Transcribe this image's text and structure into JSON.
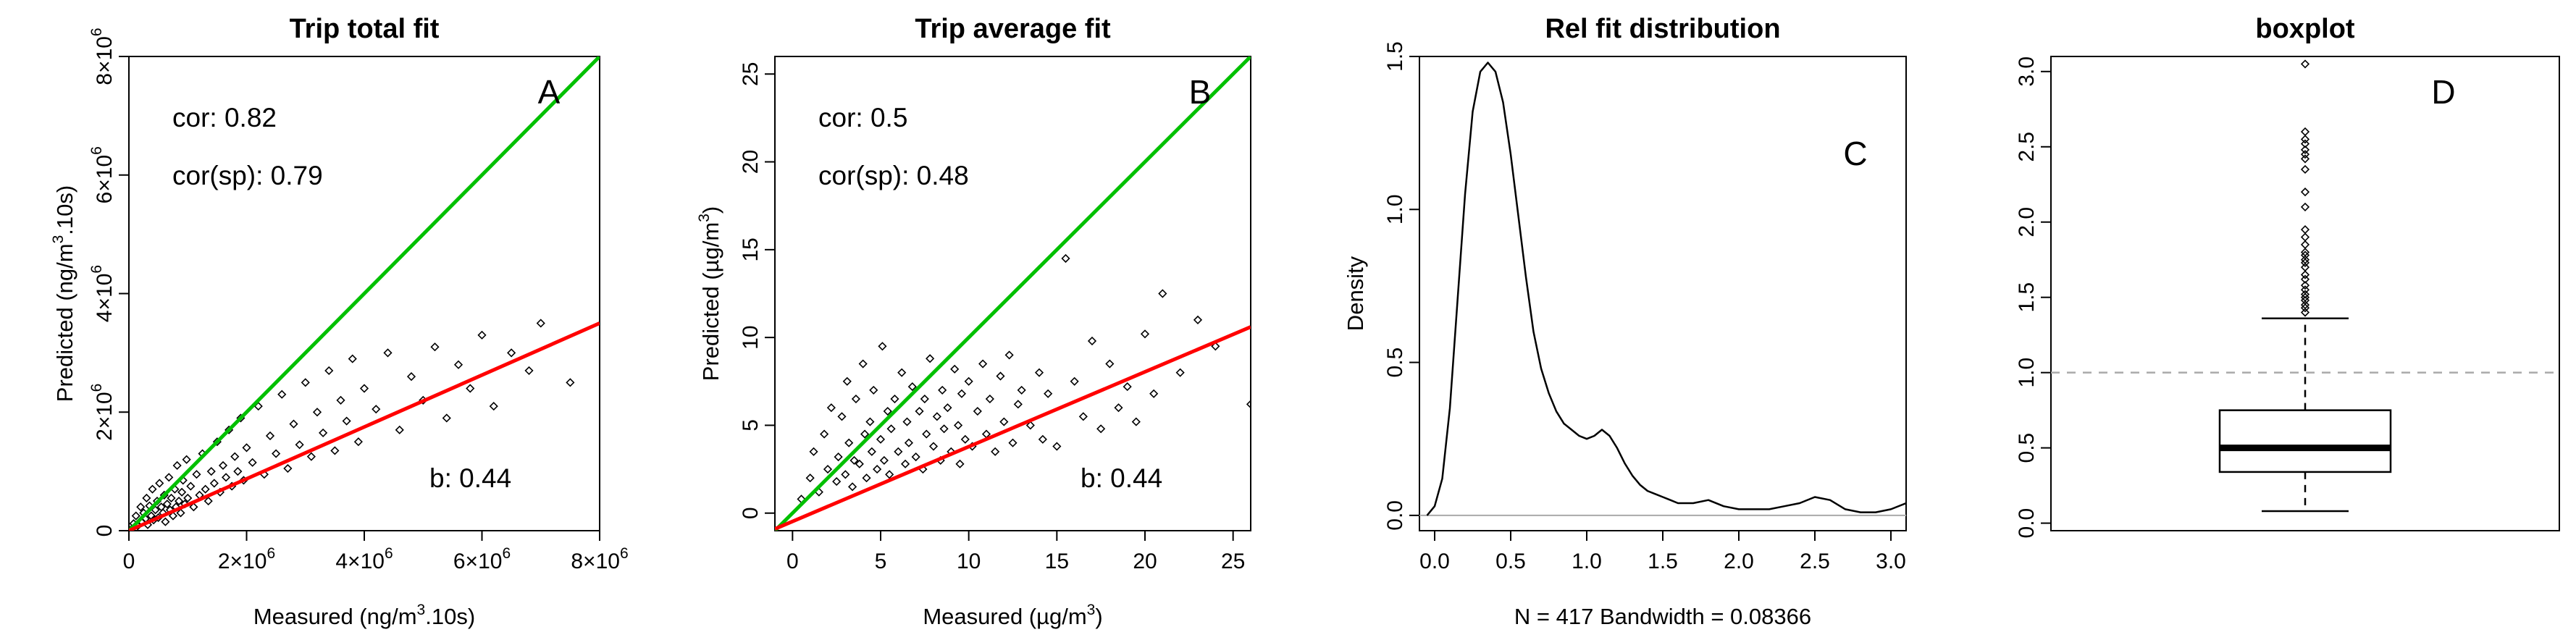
{
  "chart_data": [
    {
      "type": "scatter",
      "title": "Trip total fit",
      "xlabel": "Measured (ng/m^3.10s)",
      "ylabel": "Predicted (ng/m^3.10s)",
      "xlim": [
        0,
        8000000
      ],
      "ylim": [
        0,
        8000000
      ],
      "x_ticks": [
        {
          "v": 0,
          "label": "0"
        },
        {
          "v": 2000000,
          "label": "2×10",
          "exp": "6"
        },
        {
          "v": 4000000,
          "label": "4×10",
          "exp": "6"
        },
        {
          "v": 6000000,
          "label": "6×10",
          "exp": "6"
        },
        {
          "v": 8000000,
          "label": "8×10",
          "exp": "6"
        }
      ],
      "y_ticks": [
        {
          "v": 0,
          "label": "0"
        },
        {
          "v": 2000000,
          "label": "2×10",
          "exp": "6"
        },
        {
          "v": 4000000,
          "label": "4×10",
          "exp": "6"
        },
        {
          "v": 6000000,
          "label": "6×10",
          "exp": "6"
        },
        {
          "v": 8000000,
          "label": "8×10",
          "exp": "6"
        }
      ],
      "annotations": {
        "cor": "cor: 0.82",
        "cor_sp": "cor(sp): 0.79",
        "b": "b: 0.44",
        "letter": "A"
      },
      "lines": [
        {
          "color": "#00c000",
          "x": [
            0,
            8000000
          ],
          "y": [
            0,
            8000000
          ]
        },
        {
          "color": "#ff0000",
          "x": [
            0,
            8000000
          ],
          "y": [
            0,
            3500000
          ]
        }
      ],
      "points": [
        [
          50000,
          30000
        ],
        [
          80000,
          120000
        ],
        [
          120000,
          250000
        ],
        [
          150000,
          80000
        ],
        [
          200000,
          400000
        ],
        [
          220000,
          150000
        ],
        [
          250000,
          300000
        ],
        [
          280000,
          200000
        ],
        [
          300000,
          550000
        ],
        [
          320000,
          100000
        ],
        [
          350000,
          420000
        ],
        [
          380000,
          250000
        ],
        [
          400000,
          700000
        ],
        [
          420000,
          180000
        ],
        [
          450000,
          350000
        ],
        [
          480000,
          500000
        ],
        [
          500000,
          220000
        ],
        [
          520000,
          800000
        ],
        [
          550000,
          400000
        ],
        [
          580000,
          300000
        ],
        [
          600000,
          600000
        ],
        [
          620000,
          150000
        ],
        [
          650000,
          450000
        ],
        [
          680000,
          900000
        ],
        [
          700000,
          350000
        ],
        [
          720000,
          550000
        ],
        [
          750000,
          250000
        ],
        [
          780000,
          700000
        ],
        [
          800000,
          400000
        ],
        [
          820000,
          1100000
        ],
        [
          850000,
          500000
        ],
        [
          880000,
          300000
        ],
        [
          900000,
          650000
        ],
        [
          920000,
          850000
        ],
        [
          950000,
          450000
        ],
        [
          980000,
          1200000
        ],
        [
          1000000,
          550000
        ],
        [
          1050000,
          750000
        ],
        [
          1100000,
          400000
        ],
        [
          1150000,
          950000
        ],
        [
          1200000,
          600000
        ],
        [
          1250000,
          1300000
        ],
        [
          1300000,
          700000
        ],
        [
          1350000,
          500000
        ],
        [
          1400000,
          1000000
        ],
        [
          1450000,
          800000
        ],
        [
          1500000,
          1500000
        ],
        [
          1550000,
          650000
        ],
        [
          1600000,
          1100000
        ],
        [
          1650000,
          900000
        ],
        [
          1700000,
          1700000
        ],
        [
          1750000,
          750000
        ],
        [
          1800000,
          1250000
        ],
        [
          1850000,
          1000000
        ],
        [
          1900000,
          1900000
        ],
        [
          1950000,
          850000
        ],
        [
          2000000,
          1400000
        ],
        [
          2100000,
          1150000
        ],
        [
          2200000,
          2100000
        ],
        [
          2300000,
          950000
        ],
        [
          2400000,
          1600000
        ],
        [
          2500000,
          1300000
        ],
        [
          2600000,
          2300000
        ],
        [
          2700000,
          1050000
        ],
        [
          2800000,
          1800000
        ],
        [
          2900000,
          1450000
        ],
        [
          3000000,
          2500000
        ],
        [
          3100000,
          1250000
        ],
        [
          3200000,
          2000000
        ],
        [
          3300000,
          1650000
        ],
        [
          3400000,
          2700000
        ],
        [
          3500000,
          1350000
        ],
        [
          3600000,
          2200000
        ],
        [
          3700000,
          1850000
        ],
        [
          3800000,
          2900000
        ],
        [
          3900000,
          1500000
        ],
        [
          4000000,
          2400000
        ],
        [
          4200000,
          2050000
        ],
        [
          4400000,
          3000000
        ],
        [
          4600000,
          1700000
        ],
        [
          4800000,
          2600000
        ],
        [
          5000000,
          2200000
        ],
        [
          5200000,
          3100000
        ],
        [
          5400000,
          1900000
        ],
        [
          5600000,
          2800000
        ],
        [
          5800000,
          2400000
        ],
        [
          6000000,
          3300000
        ],
        [
          6200000,
          2100000
        ],
        [
          6500000,
          3000000
        ],
        [
          6800000,
          2700000
        ],
        [
          7000000,
          3500000
        ],
        [
          7500000,
          2500000
        ]
      ]
    },
    {
      "type": "scatter",
      "title": "Trip average fit",
      "xlabel": "Measured (µg/m^3)",
      "ylabel": "Predicted (µg/m^3)",
      "xlim": [
        -1,
        26
      ],
      "ylim": [
        -1,
        26
      ],
      "x_ticks": [
        {
          "v": 0,
          "label": "0"
        },
        {
          "v": 5,
          "label": "5"
        },
        {
          "v": 10,
          "label": "10"
        },
        {
          "v": 15,
          "label": "15"
        },
        {
          "v": 20,
          "label": "20"
        },
        {
          "v": 25,
          "label": "25"
        }
      ],
      "y_ticks": [
        {
          "v": 0,
          "label": "0"
        },
        {
          "v": 5,
          "label": "5"
        },
        {
          "v": 10,
          "label": "10"
        },
        {
          "v": 15,
          "label": "15"
        },
        {
          "v": 20,
          "label": "20"
        },
        {
          "v": 25,
          "label": "25"
        }
      ],
      "annotations": {
        "cor": "cor: 0.5",
        "cor_sp": "cor(sp): 0.48",
        "b": "b: 0.44",
        "letter": "B"
      },
      "lines": [
        {
          "color": "#00c000",
          "x": [
            -1,
            26
          ],
          "y": [
            -1,
            26
          ]
        },
        {
          "color": "#ff0000",
          "x": [
            -1,
            26
          ],
          "y": [
            -0.9,
            10.6
          ]
        }
      ],
      "points": [
        [
          0.5,
          0.8
        ],
        [
          1,
          2
        ],
        [
          1.2,
          3.5
        ],
        [
          1.5,
          1.2
        ],
        [
          1.8,
          4.5
        ],
        [
          2,
          2.5
        ],
        [
          2.2,
          6
        ],
        [
          2.5,
          1.8
        ],
        [
          2.6,
          3.2
        ],
        [
          2.8,
          5.5
        ],
        [
          3,
          2.2
        ],
        [
          3.1,
          7.5
        ],
        [
          3.2,
          4
        ],
        [
          3.4,
          1.5
        ],
        [
          3.5,
          3
        ],
        [
          3.6,
          6.5
        ],
        [
          3.8,
          2.8
        ],
        [
          4,
          8.5
        ],
        [
          4.1,
          4.5
        ],
        [
          4.2,
          2
        ],
        [
          4.4,
          5.2
        ],
        [
          4.5,
          3.5
        ],
        [
          4.6,
          7
        ],
        [
          4.8,
          2.5
        ],
        [
          5,
          4.2
        ],
        [
          5.1,
          9.5
        ],
        [
          5.2,
          3
        ],
        [
          5.4,
          5.8
        ],
        [
          5.5,
          2.2
        ],
        [
          5.6,
          4.8
        ],
        [
          5.8,
          6.5
        ],
        [
          6,
          3.5
        ],
        [
          6.2,
          8
        ],
        [
          6.4,
          2.8
        ],
        [
          6.5,
          5.2
        ],
        [
          6.6,
          4
        ],
        [
          6.8,
          7.2
        ],
        [
          7,
          3.2
        ],
        [
          7.2,
          5.8
        ],
        [
          7.4,
          2.5
        ],
        [
          7.5,
          6.5
        ],
        [
          7.6,
          4.5
        ],
        [
          7.8,
          8.8
        ],
        [
          8,
          3.8
        ],
        [
          8.2,
          5.5
        ],
        [
          8.4,
          3
        ],
        [
          8.5,
          7
        ],
        [
          8.6,
          4.8
        ],
        [
          8.8,
          6
        ],
        [
          9,
          3.5
        ],
        [
          9.2,
          8.2
        ],
        [
          9.4,
          5
        ],
        [
          9.5,
          2.8
        ],
        [
          9.6,
          6.8
        ],
        [
          9.8,
          4.2
        ],
        [
          10,
          7.5
        ],
        [
          10.2,
          3.8
        ],
        [
          10.5,
          5.8
        ],
        [
          10.8,
          8.5
        ],
        [
          11,
          4.5
        ],
        [
          11.2,
          6.5
        ],
        [
          11.5,
          3.5
        ],
        [
          11.8,
          7.8
        ],
        [
          12,
          5.2
        ],
        [
          12.3,
          9
        ],
        [
          12.5,
          4
        ],
        [
          12.8,
          6.2
        ],
        [
          13,
          7
        ],
        [
          13.5,
          5
        ],
        [
          14,
          8
        ],
        [
          14.2,
          4.2
        ],
        [
          14.5,
          6.8
        ],
        [
          15,
          3.8
        ],
        [
          15.5,
          14.5
        ],
        [
          16,
          7.5
        ],
        [
          16.5,
          5.5
        ],
        [
          17,
          9.8
        ],
        [
          17.5,
          4.8
        ],
        [
          18,
          8.5
        ],
        [
          18.5,
          6
        ],
        [
          19,
          7.2
        ],
        [
          19.5,
          5.2
        ],
        [
          20,
          10.2
        ],
        [
          20.5,
          6.8
        ],
        [
          21,
          12.5
        ],
        [
          22,
          8
        ],
        [
          23,
          11
        ],
        [
          24,
          9.5
        ],
        [
          26,
          6.2
        ]
      ]
    },
    {
      "type": "line",
      "title": "Rel fit distribution",
      "xlabel": "N = 417   Bandwidth = 0.08366",
      "ylabel": "Density",
      "xlim": [
        -0.1,
        3.1
      ],
      "ylim": [
        -0.05,
        1.5
      ],
      "x_ticks": [
        {
          "v": 0,
          "label": "0.0"
        },
        {
          "v": 0.5,
          "label": "0.5"
        },
        {
          "v": 1,
          "label": "1.0"
        },
        {
          "v": 1.5,
          "label": "1.5"
        },
        {
          "v": 2,
          "label": "2.0"
        },
        {
          "v": 2.5,
          "label": "2.5"
        },
        {
          "v": 3,
          "label": "3.0"
        }
      ],
      "y_ticks": [
        {
          "v": 0,
          "label": "0.0"
        },
        {
          "v": 0.5,
          "label": "0.5"
        },
        {
          "v": 1,
          "label": "1.0"
        },
        {
          "v": 1.5,
          "label": "1.5"
        }
      ],
      "annotations": {
        "letter": "C"
      },
      "hline": {
        "y": 0,
        "color": "#aaaaaa"
      },
      "x": [
        -0.05,
        0.0,
        0.05,
        0.1,
        0.15,
        0.2,
        0.25,
        0.3,
        0.35,
        0.4,
        0.45,
        0.5,
        0.55,
        0.6,
        0.65,
        0.7,
        0.75,
        0.8,
        0.85,
        0.9,
        0.95,
        1.0,
        1.05,
        1.1,
        1.15,
        1.2,
        1.25,
        1.3,
        1.35,
        1.4,
        1.45,
        1.5,
        1.55,
        1.6,
        1.7,
        1.8,
        1.9,
        2.0,
        2.1,
        2.2,
        2.3,
        2.4,
        2.5,
        2.6,
        2.7,
        2.8,
        2.9,
        3.0,
        3.1
      ],
      "y": [
        0.0,
        0.03,
        0.12,
        0.35,
        0.7,
        1.05,
        1.32,
        1.45,
        1.48,
        1.45,
        1.35,
        1.18,
        0.98,
        0.78,
        0.6,
        0.48,
        0.4,
        0.34,
        0.3,
        0.28,
        0.26,
        0.25,
        0.26,
        0.28,
        0.26,
        0.22,
        0.17,
        0.13,
        0.1,
        0.08,
        0.07,
        0.06,
        0.05,
        0.04,
        0.04,
        0.05,
        0.03,
        0.02,
        0.02,
        0.02,
        0.03,
        0.04,
        0.06,
        0.05,
        0.02,
        0.01,
        0.01,
        0.02,
        0.04
      ]
    },
    {
      "type": "box",
      "title": "boxplot",
      "ylim": [
        -0.05,
        3.1
      ],
      "y_ticks": [
        {
          "v": 0,
          "label": "0.0"
        },
        {
          "v": 0.5,
          "label": "0.5"
        },
        {
          "v": 1,
          "label": "1.0"
        },
        {
          "v": 1.5,
          "label": "1.5"
        },
        {
          "v": 2,
          "label": "2.0"
        },
        {
          "v": 2.5,
          "label": "2.5"
        },
        {
          "v": 3,
          "label": "3.0"
        }
      ],
      "annotations": {
        "letter": "D"
      },
      "hline": {
        "y": 1.0,
        "color": "#aaaaaa",
        "dashed": true
      },
      "box": {
        "min": 0.08,
        "q1": 0.34,
        "median": 0.5,
        "q3": 0.75,
        "max": 1.36
      },
      "outliers": [
        1.4,
        1.43,
        1.45,
        1.48,
        1.5,
        1.52,
        1.55,
        1.58,
        1.62,
        1.65,
        1.7,
        1.73,
        1.75,
        1.78,
        1.8,
        1.85,
        1.9,
        1.95,
        2.1,
        2.2,
        2.35,
        2.42,
        2.45,
        2.48,
        2.52,
        2.55,
        2.6,
        3.05
      ]
    }
  ]
}
